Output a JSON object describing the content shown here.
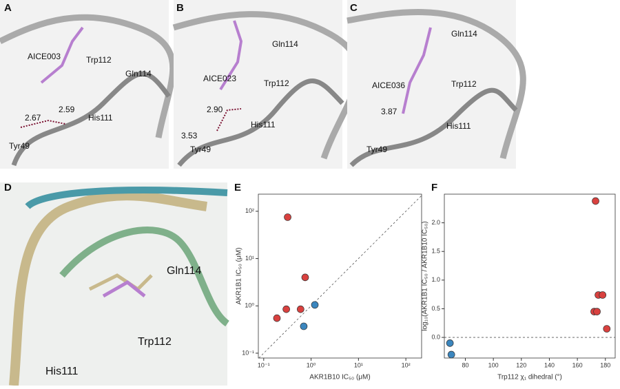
{
  "panels": [
    {
      "label": "A",
      "texts": [
        "AICE003",
        "Trp112",
        "Gln114",
        "2.67",
        "2.59",
        "His111",
        "Tyr49"
      ]
    },
    {
      "label": "B",
      "texts": [
        "AICE023",
        "Gln114",
        "Trp112",
        "3.53",
        "2.90",
        "His111",
        "Tyr49"
      ]
    },
    {
      "label": "C",
      "texts": [
        "AICE036",
        "Gln114",
        "Trp112",
        "3.87",
        "His111",
        "Tyr49"
      ]
    },
    {
      "label": "D",
      "texts": [
        "Gln114",
        "Trp112",
        "His111"
      ]
    }
  ],
  "chart_data": [
    {
      "type": "scatter",
      "label": "E",
      "x_label": "AKR1B10 IC₅₀ (μM)",
      "y_label": "AKR1B1 IC₅₀ (μM)",
      "log_x": true,
      "log_y": true,
      "identity_line": true,
      "xlim": [
        0.077,
        215
      ],
      "ylim": [
        0.079,
        230
      ],
      "xticks": [
        {
          "value": 0.1,
          "label": "10⁻¹"
        },
        {
          "value": 1,
          "label": "10⁰"
        },
        {
          "value": 10,
          "label": "10¹"
        },
        {
          "value": 100,
          "label": "10²"
        }
      ],
      "yticks": [
        {
          "value": 0.1,
          "label": "10⁻¹"
        },
        {
          "value": 1,
          "label": "10⁰"
        },
        {
          "value": 10,
          "label": "10¹"
        },
        {
          "value": 100,
          "label": "10²"
        }
      ],
      "series": [
        {
          "color": "#d9413f",
          "x": [
            0.19,
            0.3,
            0.6,
            0.75,
            0.32
          ],
          "values": [
            0.55,
            0.85,
            0.85,
            4.0,
            75
          ]
        },
        {
          "color": "#3b86be",
          "x": [
            1.2,
            0.7
          ],
          "values": [
            1.05,
            0.37
          ]
        }
      ]
    },
    {
      "type": "scatter",
      "label": "F",
      "x_label": "Trp112 χ₁ dihedral (°)",
      "y_label": "log₁₀(AKR1B1 IC₅₀ / AKR1B10 IC₅₀)",
      "log_x": false,
      "log_y": false,
      "zero_line": true,
      "xlim": [
        65,
        187
      ],
      "ylim": [
        -0.36,
        2.5
      ],
      "xticks": [
        80,
        100,
        120,
        140,
        160,
        180
      ],
      "yticks": [
        {
          "value": 0,
          "label": "0.0"
        },
        {
          "value": 0.5,
          "label": "0.5"
        },
        {
          "value": 1,
          "label": "1.0"
        },
        {
          "value": 1.5,
          "label": "1.5"
        },
        {
          "value": 2,
          "label": "2.0"
        }
      ],
      "series": [
        {
          "color": "#d9413f",
          "x": [
            173,
            175,
            178,
            172,
            174,
            181
          ],
          "values": [
            2.38,
            0.74,
            0.74,
            0.45,
            0.45,
            0.15
          ]
        },
        {
          "color": "#3b86be",
          "x": [
            69,
            70
          ],
          "values": [
            -0.1,
            -0.3
          ]
        }
      ]
    }
  ]
}
